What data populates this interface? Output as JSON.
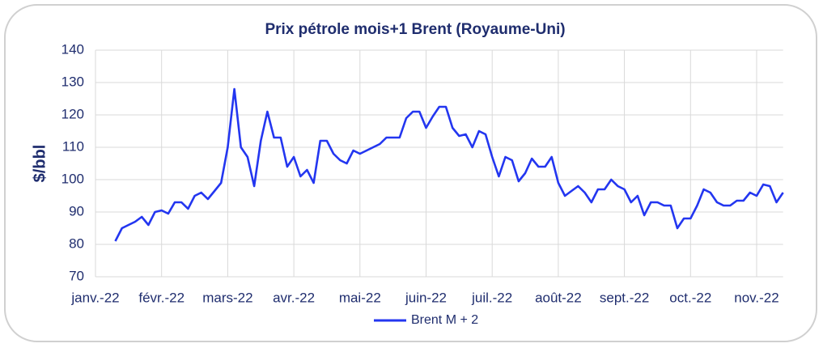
{
  "chart_data": {
    "type": "line",
    "title": "Prix pétrole mois+1 Brent (Royaume-Uni)",
    "y_label": "$/bbl",
    "categories": [
      "janv.-22",
      null,
      null,
      null,
      null,
      null,
      null,
      null,
      null,
      null,
      "févr.-22",
      null,
      null,
      null,
      null,
      null,
      null,
      null,
      null,
      null,
      "mars-22",
      null,
      null,
      null,
      null,
      null,
      null,
      null,
      null,
      null,
      "avr.-22",
      null,
      null,
      null,
      null,
      null,
      null,
      null,
      null,
      null,
      "mai-22",
      null,
      null,
      null,
      null,
      null,
      null,
      null,
      null,
      null,
      "juin-22",
      null,
      null,
      null,
      null,
      null,
      null,
      null,
      null,
      null,
      "juil.-22",
      null,
      null,
      null,
      null,
      null,
      null,
      null,
      null,
      null,
      "août-22",
      null,
      null,
      null,
      null,
      null,
      null,
      null,
      null,
      null,
      "sept.-22",
      null,
      null,
      null,
      null,
      null,
      null,
      null,
      null,
      null,
      "oct.-22",
      null,
      null,
      null,
      null,
      null,
      null,
      null,
      null,
      null,
      "nov.-22",
      null,
      null,
      null,
      null
    ],
    "series": [
      {
        "name": "Brent M + 2",
        "color": "#2336f0",
        "values": [
          null,
          null,
          null,
          81,
          85,
          86,
          87,
          88.5,
          86,
          90,
          90.5,
          89.5,
          93,
          93,
          91,
          95,
          96,
          94,
          96.5,
          99,
          110,
          128,
          110,
          107,
          98,
          112,
          121,
          113,
          113,
          104,
          107,
          101,
          103,
          99,
          112,
          112,
          108,
          106,
          105,
          109,
          108,
          109,
          110,
          111,
          113,
          113,
          113,
          119,
          121,
          121,
          116,
          119.5,
          122.5,
          122.5,
          116,
          113.5,
          114,
          110,
          115,
          114,
          107,
          101,
          107,
          106,
          99.5,
          102,
          106.5,
          104,
          104,
          107,
          99,
          95,
          96.5,
          98,
          96,
          93,
          97,
          97,
          100,
          98,
          97,
          93,
          95,
          89,
          93,
          93,
          92,
          92,
          85,
          88,
          88,
          92,
          97,
          96,
          93,
          92,
          92,
          93.5,
          93.5,
          96,
          95,
          98.5,
          98,
          93,
          96
        ]
      }
    ],
    "ylim": [
      70,
      140
    ],
    "yticks": [
      70,
      80,
      90,
      100,
      110,
      120,
      130,
      140
    ],
    "grid": true,
    "legend": "bottom"
  }
}
